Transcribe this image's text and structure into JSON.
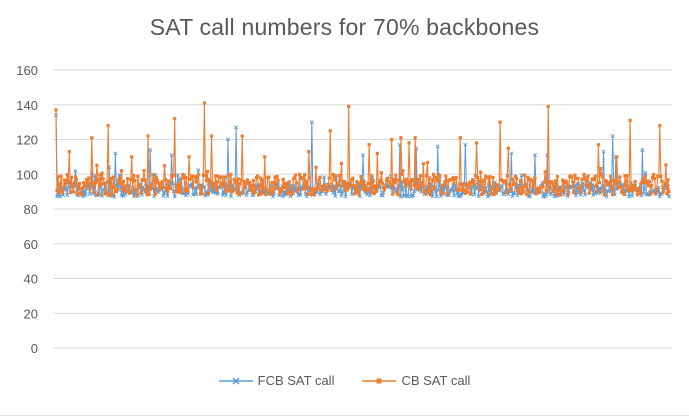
{
  "colors": {
    "series1": "#5b9bd5",
    "series2": "#ed7d31",
    "grid": "#d9d9d9",
    "text": "#595959"
  },
  "chart_data": {
    "type": "line",
    "title": "SAT call numbers for 70% backbones",
    "xlabel": "",
    "ylabel": "",
    "ylim": [
      0,
      160
    ],
    "yticks": [
      "0",
      "20",
      "40",
      "60",
      "80",
      "100",
      "120",
      "140",
      "160"
    ],
    "grid": "horizontal",
    "legend_position": "bottom",
    "n_points": 600,
    "series": [
      {
        "name": "FCB SAT call",
        "marker": "x",
        "color_key": "series1",
        "baseline": 91,
        "spread": 4,
        "spikes": [
          [
            0,
            134
          ],
          [
            52,
            104
          ],
          [
            58,
            112
          ],
          [
            92,
            114
          ],
          [
            113,
            111
          ],
          [
            168,
            120
          ],
          [
            176,
            127
          ],
          [
            220,
            91
          ],
          [
            250,
            130
          ],
          [
            300,
            111
          ],
          [
            336,
            117
          ],
          [
            352,
            115
          ],
          [
            373,
            116
          ],
          [
            400,
            117
          ],
          [
            445,
            112
          ],
          [
            468,
            111
          ],
          [
            480,
            111
          ],
          [
            535,
            113
          ],
          [
            544,
            122
          ],
          [
            547,
            110
          ],
          [
            573,
            114
          ],
          [
            600,
            127
          ],
          [
            630,
            110
          ],
          [
            648,
            112
          ]
        ]
      },
      {
        "name": "CB SAT call",
        "marker": "square",
        "color_key": "series2",
        "baseline": 94,
        "spread": 6,
        "spikes": [
          [
            0,
            137
          ],
          [
            13,
            113
          ],
          [
            35,
            121
          ],
          [
            51,
            128
          ],
          [
            74,
            110
          ],
          [
            90,
            122
          ],
          [
            116,
            132
          ],
          [
            130,
            110
          ],
          [
            145,
            141
          ],
          [
            152,
            122
          ],
          [
            182,
            122
          ],
          [
            204,
            110
          ],
          [
            247,
            113
          ],
          [
            268,
            125
          ],
          [
            286,
            139
          ],
          [
            306,
            117
          ],
          [
            314,
            112
          ],
          [
            328,
            120
          ],
          [
            337,
            121
          ],
          [
            345,
            118
          ],
          [
            351,
            121
          ],
          [
            395,
            121
          ],
          [
            411,
            118
          ],
          [
            434,
            130
          ],
          [
            442,
            115
          ],
          [
            481,
            139
          ],
          [
            530,
            117
          ],
          [
            548,
            110
          ],
          [
            561,
            131
          ],
          [
            590,
            128
          ],
          [
            617,
            112
          ],
          [
            638,
            128
          ],
          [
            650,
            110
          ],
          [
            665,
            139
          ]
        ]
      }
    ]
  }
}
